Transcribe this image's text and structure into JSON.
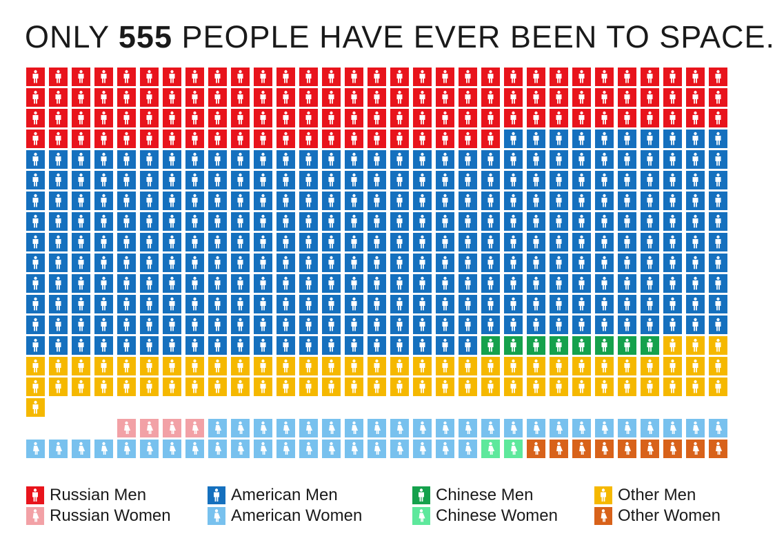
{
  "title": {
    "prefix": "ONLY ",
    "number": "555",
    "suffix": " PEOPLE HAVE EVER BEEN TO SPACE."
  },
  "chart_data": {
    "type": "waffle",
    "title": "ONLY 555 PEOPLE HAVE EVER BEEN TO SPACE.",
    "total": 555,
    "columns": 31,
    "men_block": {
      "order": [
        "russian_men",
        "american_men",
        "chinese_men",
        "other_men"
      ],
      "counts": {
        "russian_men": 114,
        "american_men": 309,
        "chinese_men": 8,
        "other_men": 66
      }
    },
    "women_block": {
      "order": [
        "russian_women",
        "american_women",
        "chinese_women",
        "other_women"
      ],
      "counts": {
        "russian_women": 4,
        "american_women": 43,
        "chinese_women": 2,
        "other_women": 9
      }
    },
    "categories": [
      {
        "key": "russian_men",
        "label": "Russian Men",
        "color": "#e8141c",
        "gender": "man"
      },
      {
        "key": "russian_women",
        "label": "Russian Women",
        "color": "#f2a1a6",
        "gender": "woman"
      },
      {
        "key": "american_men",
        "label": "American Men",
        "color": "#1570be",
        "gender": "man"
      },
      {
        "key": "american_women",
        "label": "American Women",
        "color": "#78c1ee",
        "gender": "woman"
      },
      {
        "key": "chinese_men",
        "label": "Chinese Men",
        "color": "#15a14c",
        "gender": "man"
      },
      {
        "key": "chinese_women",
        "label": "Chinese Women",
        "color": "#5ee89c",
        "gender": "woman"
      },
      {
        "key": "other_men",
        "label": "Other Men",
        "color": "#f5b800",
        "gender": "man"
      },
      {
        "key": "other_women",
        "label": "Other Women",
        "color": "#d8621a",
        "gender": "woman"
      }
    ]
  }
}
